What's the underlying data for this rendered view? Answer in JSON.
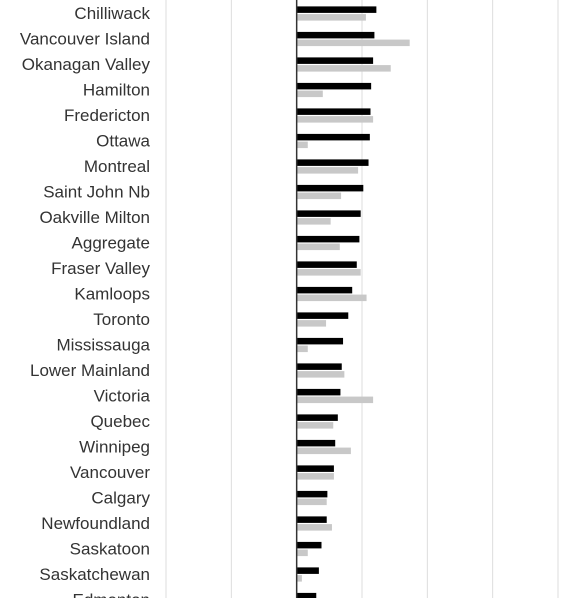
{
  "chart_data": {
    "type": "bar",
    "orientation": "horizontal",
    "title": "",
    "xlabel": "",
    "ylabel": "",
    "grid": true,
    "legend": "none",
    "categories": [
      "Chilliwack",
      "Vancouver Island",
      "Okanagan Valley",
      "Hamilton",
      "Fredericton",
      "Ottawa",
      "Montreal",
      "Saint John Nb",
      "Oakville Milton",
      "Aggregate",
      "Fraser Valley",
      "Kamloops",
      "Toronto",
      "Mississauga",
      "Lower Mainland",
      "Victoria",
      "Quebec",
      "Winnipeg",
      "Vancouver",
      "Calgary",
      "Newfoundland",
      "Saskatoon",
      "Saskatchewan",
      "Edmonton"
    ],
    "series": [
      {
        "color": "#000000",
        "values": [
          12.2,
          11.9,
          11.7,
          11.4,
          11.3,
          11.2,
          11.0,
          10.2,
          9.8,
          9.6,
          9.2,
          8.5,
          7.9,
          7.1,
          6.9,
          6.7,
          6.3,
          5.9,
          5.7,
          4.7,
          4.6,
          3.8,
          3.4,
          3.0
        ]
      },
      {
        "color": "#c8c8c8",
        "values": [
          10.6,
          17.3,
          14.4,
          4.0,
          11.7,
          1.7,
          9.4,
          6.8,
          5.2,
          6.6,
          9.8,
          10.7,
          4.5,
          1.7,
          7.3,
          11.7,
          5.6,
          8.3,
          5.7,
          4.6,
          5.4,
          1.7,
          0.8,
          0.0
        ]
      }
    ],
    "xlim": [
      -20,
      40
    ]
  },
  "colors": {
    "gridline": "#dddddd",
    "axis": "#333333",
    "label": "#333333"
  }
}
